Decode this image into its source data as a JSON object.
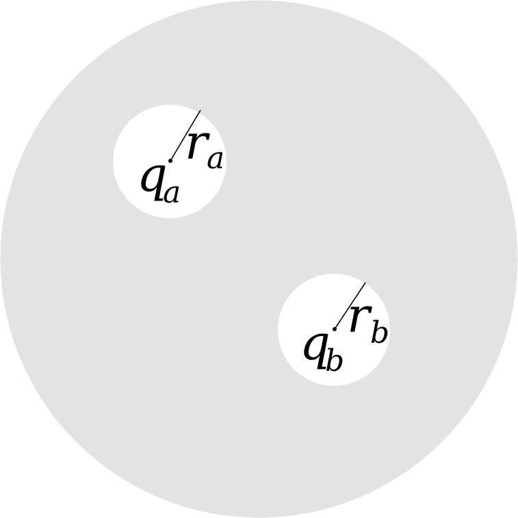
{
  "colors": {
    "sphere_fill": "#e3e3e3",
    "cavity_fill": "#ffffff",
    "ink": "#000000"
  },
  "cavities": [
    {
      "charge_letter": "q",
      "charge_sub": "a",
      "radius_letter": "r",
      "radius_sub": "a"
    },
    {
      "charge_letter": "q",
      "charge_sub": "b",
      "radius_letter": "r",
      "radius_sub": "b"
    }
  ]
}
